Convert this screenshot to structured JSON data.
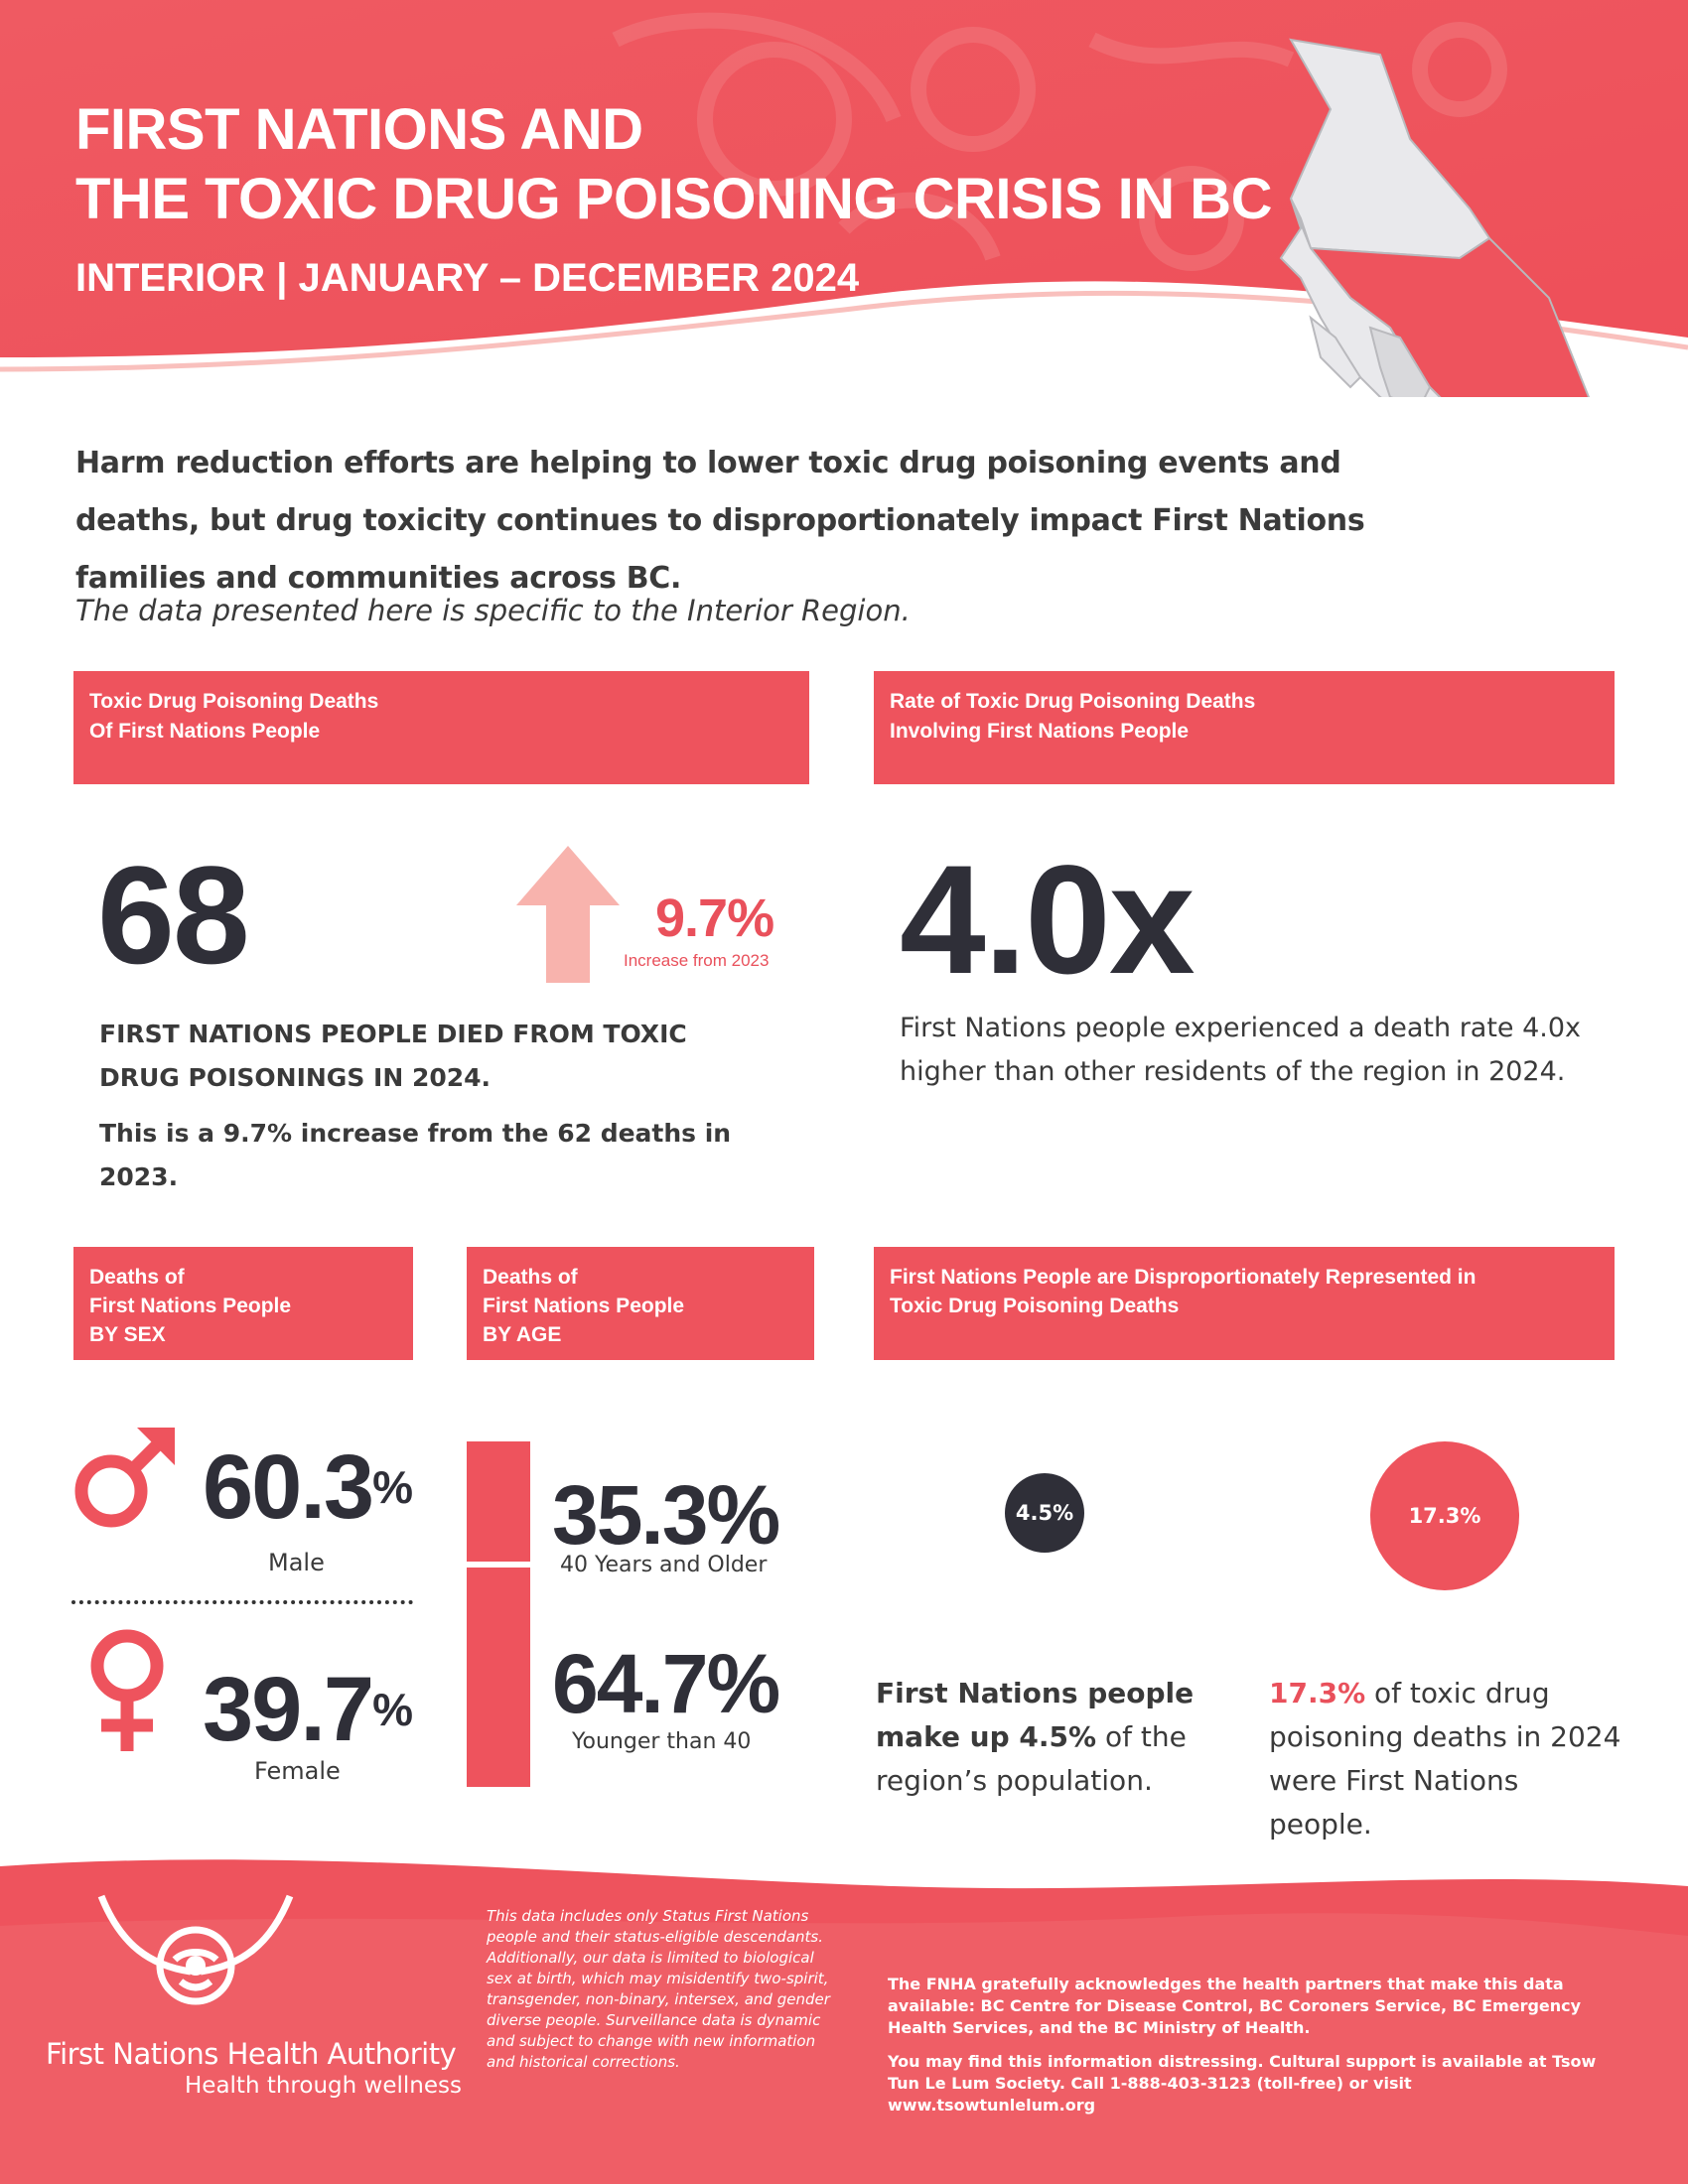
{
  "header": {
    "title_line1": "FIRST NATIONS AND",
    "title_line2": "THE TOXIC DRUG POISONING CRISIS IN BC",
    "subtitle": "INTERIOR | JANUARY – DECEMBER 2024"
  },
  "intro": {
    "text": "Harm reduction efforts are helping to lower toxic drug poisoning events and deaths, but drug toxicity continues to disproportionately impact First Nations families and communities across BC.",
    "note": "The data presented here is specific to the Interior Region."
  },
  "deaths": {
    "heading_line1": "Toxic Drug Poisoning Deaths",
    "heading_line2": "Of First Nations People",
    "count": "68",
    "change_pct": "9.7%",
    "change_label": "Increase from 2023",
    "statement": "FIRST NATIONS PEOPLE DIED FROM TOXIC DRUG POISONINGS IN 2024.",
    "comparison": "This is a 9.7% increase from the 62 deaths in 2023."
  },
  "rate": {
    "heading_line1": "Rate of Toxic Drug Poisoning Deaths",
    "heading_line2": "Involving First Nations People",
    "value": "4.0x",
    "statement": "First Nations people experienced a death rate 4.0x higher than other residents of the region in 2024."
  },
  "by_sex": {
    "heading_line1": "Deaths of",
    "heading_line2": "First Nations People",
    "heading_line3": "BY SEX",
    "male_pct": "60.3",
    "male_label": "Male",
    "female_pct": "39.7",
    "female_label": "Female",
    "pct_sign": "%"
  },
  "by_age": {
    "heading_line1": "Deaths of",
    "heading_line2": "First Nations People",
    "heading_line3": "BY AGE",
    "older_pct": "35.3%",
    "older_label": "40 Years and Older",
    "older_value": 35.3,
    "younger_pct": "64.7%",
    "younger_label": "Younger than 40",
    "younger_value": 64.7
  },
  "representation": {
    "heading_line1": "First Nations People are Disproportionately Represented in",
    "heading_line2": "Toxic Drug Poisoning Deaths",
    "population_pct": "4.5%",
    "population_bold": "First Nations people make up 4.5%",
    "population_rest": " of the region’s population.",
    "deaths_pct": "17.3%",
    "deaths_highlight": "17.3%",
    "deaths_rest": " of toxic drug poisoning deaths in 2024 were First Nations people."
  },
  "footer": {
    "note": "This data includes only Status First Nations people and their status-eligible descendants. Additionally, our data is limited to biological sex at birth, which may misidentify two-spirit, transgender, non-binary, intersex, and gender diverse people. Surveillance data is dynamic and subject to change with new information and historical corrections.",
    "acknowledgement": "The FNHA gratefully acknowledges the health partners that make this data available: BC Centre for Disease Control, BC Coroners Service, BC Emergency Health Services, and the BC Ministry of Health.",
    "support": "You may find this information distressing. Cultural support is available at Tsow Tun Le Lum Society.  Call 1-888-403-3123 (toll-free) or visit www.tsowtunlelum.org",
    "org_name": "First Nations Health Authority",
    "org_tagline": "Health through wellness"
  },
  "colors": {
    "brand_red": "#ee535d",
    "dark": "#2f2f38",
    "arrow_pink": "#f8b3ad"
  }
}
